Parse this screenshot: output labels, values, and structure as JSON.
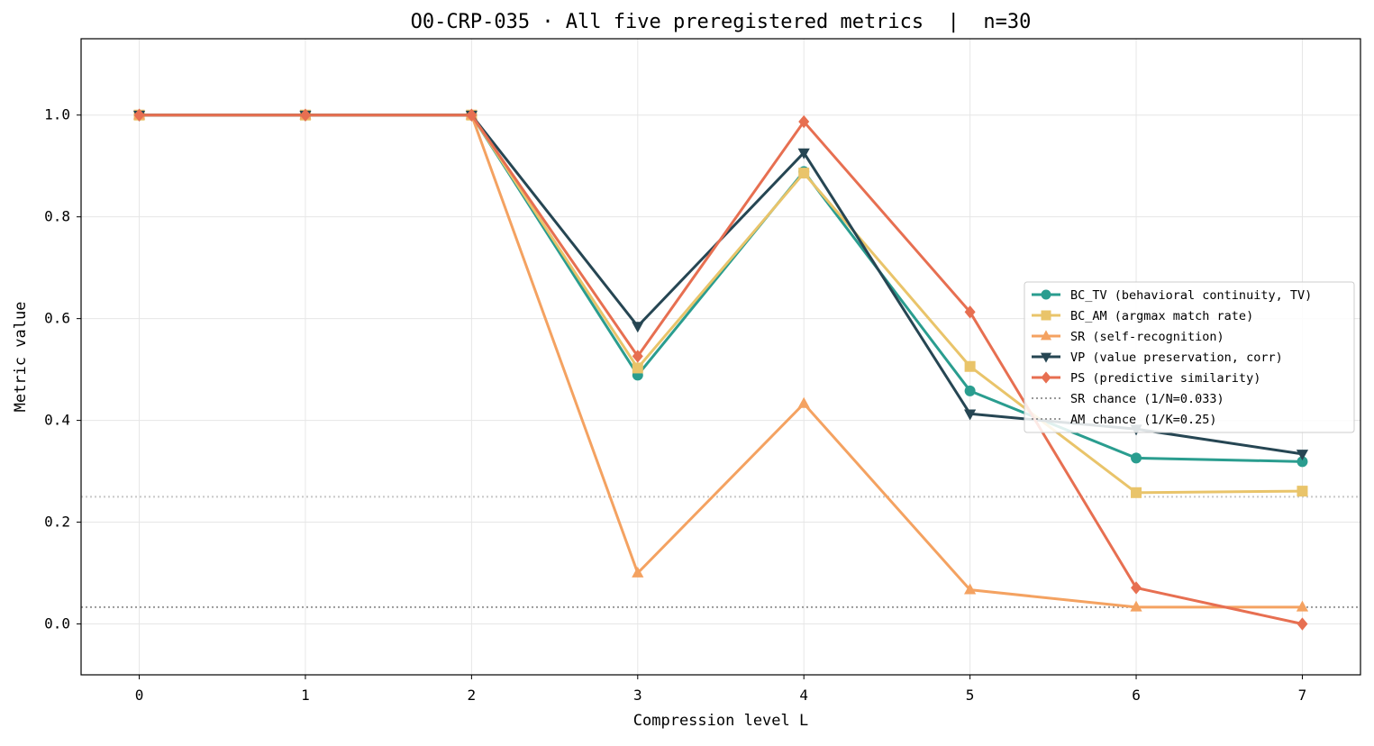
{
  "chart_data": {
    "type": "line",
    "title": "O0-CRP-035 · All five preregistered metrics  |  n=30",
    "xlabel": "Compression level L",
    "ylabel": "Metric value",
    "x": [
      0,
      1,
      2,
      3,
      4,
      5,
      6,
      7
    ],
    "xlim": [
      -0.35,
      7.35
    ],
    "ylim": [
      -0.1,
      1.15
    ],
    "xticks": [
      0,
      1,
      2,
      3,
      4,
      5,
      6,
      7
    ],
    "yticks": [
      0.0,
      0.2,
      0.4,
      0.6,
      0.8,
      1.0
    ],
    "grid": true,
    "legend_placement": "center-right",
    "series": [
      {
        "name": "BC_TV (behavioral continuity, TV)",
        "marker": "circle",
        "color": "#2a9d8f",
        "values": [
          1.0,
          1.0,
          1.0,
          0.489,
          0.889,
          0.458,
          0.326,
          0.319
        ]
      },
      {
        "name": "BC_AM (argmax match rate)",
        "marker": "square",
        "color": "#e9c46a",
        "values": [
          1.0,
          1.0,
          1.0,
          0.503,
          0.886,
          0.506,
          0.258,
          0.261
        ]
      },
      {
        "name": "SR (self-recognition)",
        "marker": "triangle-up",
        "color": "#f4a261",
        "values": [
          1.0,
          1.0,
          1.0,
          0.1,
          0.433,
          0.067,
          0.033,
          0.033
        ]
      },
      {
        "name": "VP (value preservation, corr)",
        "marker": "triangle-down",
        "color": "#264653",
        "values": [
          1.0,
          1.0,
          1.0,
          0.585,
          0.926,
          0.413,
          0.383,
          0.334
        ]
      },
      {
        "name": "PS (predictive similarity)",
        "marker": "diamond",
        "color": "#e76f51",
        "values": [
          1.0,
          1.0,
          1.0,
          0.526,
          0.987,
          0.613,
          0.071,
          0.0
        ]
      }
    ],
    "reference_lines": [
      {
        "name": "SR chance (1/N=0.033)",
        "y": 0.033,
        "color": "#999999",
        "style": "dotted"
      },
      {
        "name": "AM chance (1/K=0.25)",
        "y": 0.25,
        "color": "#c8c8c8",
        "style": "dotted"
      }
    ]
  }
}
